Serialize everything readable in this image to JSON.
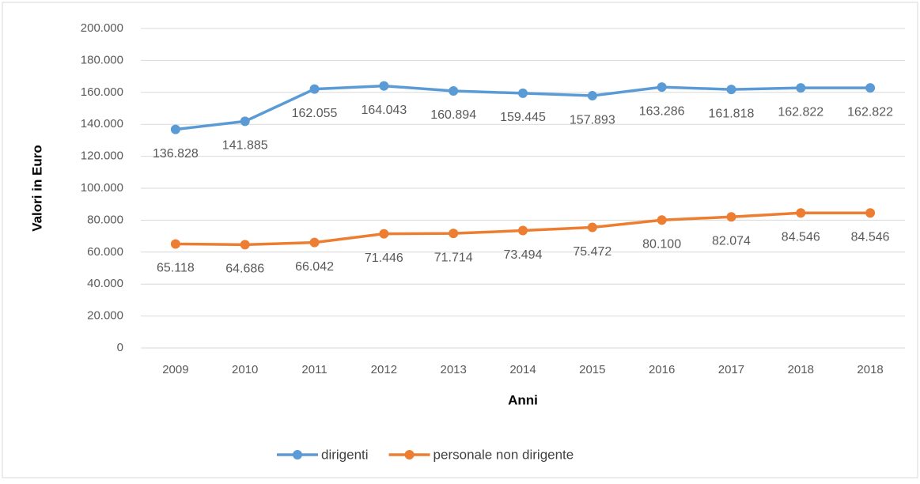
{
  "chart_data": {
    "type": "line",
    "x_label": "Anni",
    "y_label": "Valori in Euro",
    "categories": [
      "2009",
      "2010",
      "2011",
      "2012",
      "2013",
      "2014",
      "2015",
      "2016",
      "2017",
      "2018",
      "2018"
    ],
    "series": [
      {
        "name": "dirigenti",
        "color": "#5b9bd5",
        "values": [
          136828,
          141885,
          162055,
          164043,
          160894,
          159445,
          157893,
          163286,
          161818,
          162822,
          162822
        ],
        "value_labels": [
          "136.828",
          "141.885",
          "162.055",
          "164.043",
          "160.894",
          "159.445",
          "157.893",
          "163.286",
          "161.818",
          "162.822",
          "162.822"
        ]
      },
      {
        "name": "personale non dirigente",
        "color": "#ed7d31",
        "values": [
          65118,
          64686,
          66042,
          71446,
          71714,
          73494,
          75472,
          80100,
          82074,
          84546,
          84546
        ],
        "value_labels": [
          "65.118",
          "64.686",
          "66.042",
          "71.446",
          "71.714",
          "73.494",
          "75.472",
          "80.100",
          "82.074",
          "84.546",
          "84.546"
        ]
      }
    ],
    "ylim": [
      0,
      200000
    ],
    "yticks": [
      0,
      {
        "value": 20000,
        "label": "20.000"
      },
      {
        "value": 40000,
        "label": "40.000"
      },
      {
        "value": 60000,
        "label": "60.000"
      },
      {
        "value": 80000,
        "label": "80.000"
      },
      {
        "value": 100000,
        "label": "100.000"
      },
      {
        "value": 120000,
        "label": "120.000"
      },
      {
        "value": 140000,
        "label": "140.000"
      },
      {
        "value": 160000,
        "label": "160.000"
      },
      {
        "value": 180000,
        "label": "180.000"
      },
      {
        "value": 200000,
        "label": "200.000"
      }
    ],
    "grid": true,
    "legend": "bottom"
  }
}
